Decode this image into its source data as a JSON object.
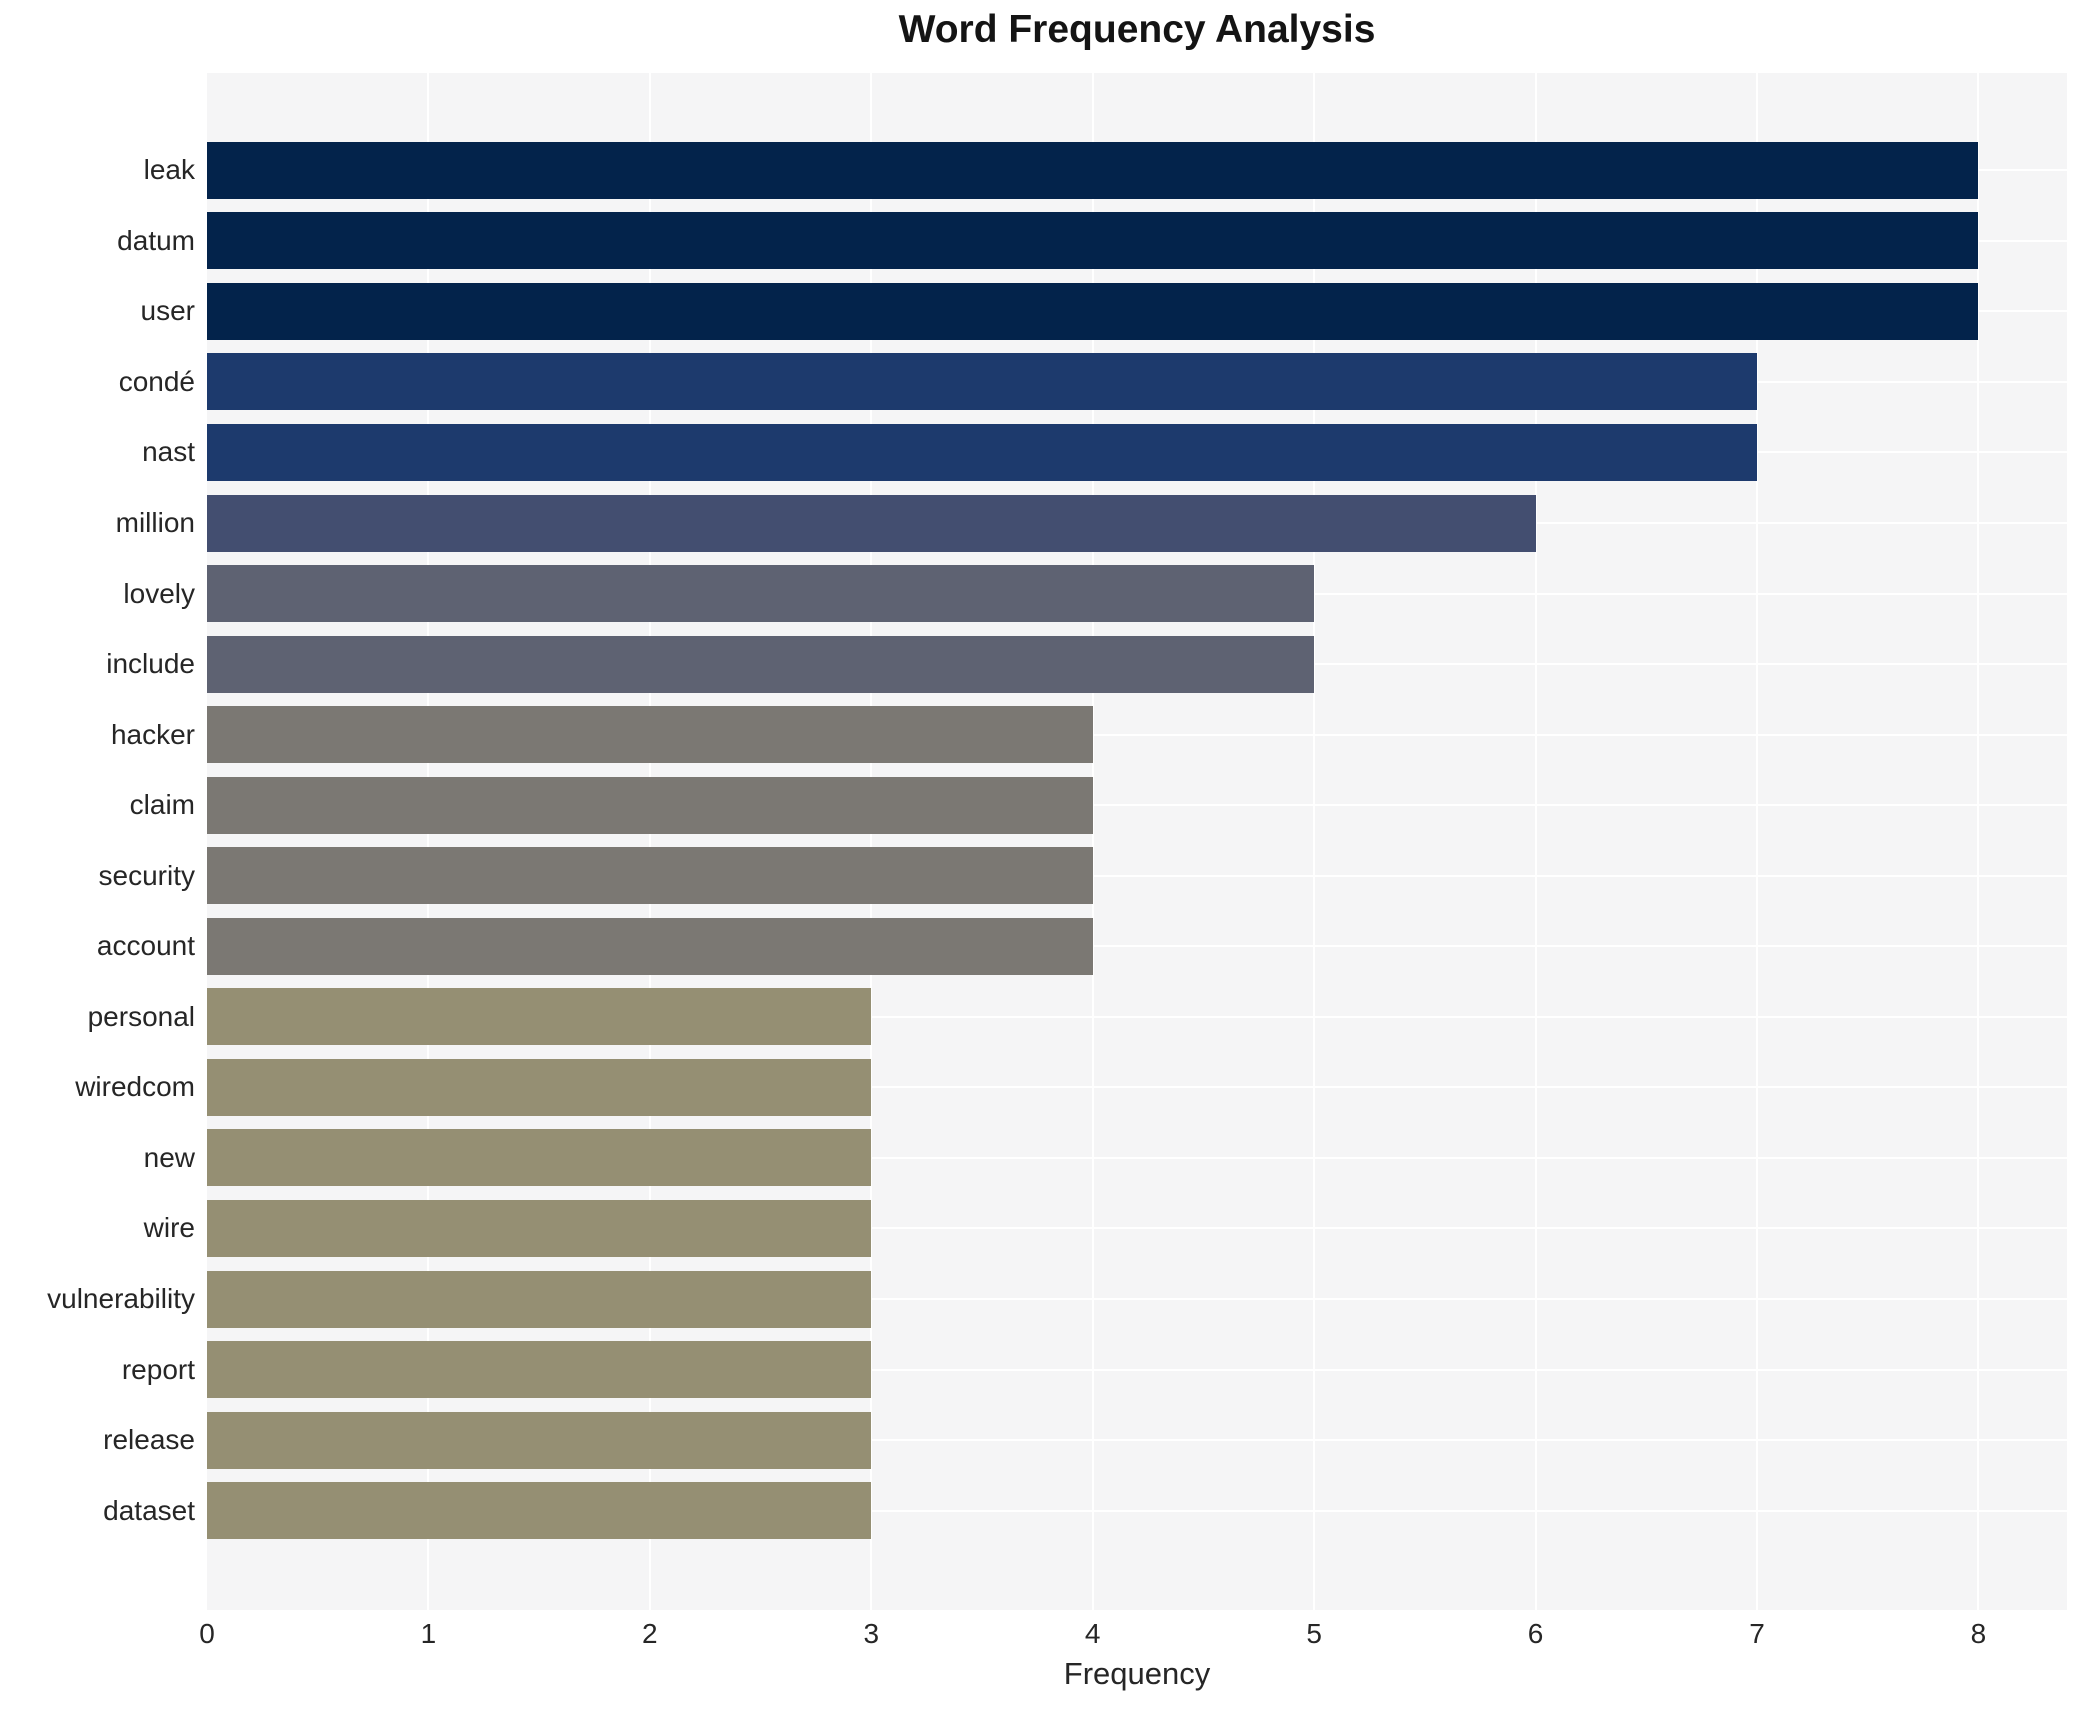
{
  "chart_data": {
    "type": "bar",
    "orientation": "horizontal",
    "title": "Word Frequency Analysis",
    "xlabel": "Frequency",
    "ylabel": "",
    "categories": [
      "leak",
      "datum",
      "user",
      "condé",
      "nast",
      "million",
      "lovely",
      "include",
      "hacker",
      "claim",
      "security",
      "account",
      "personal",
      "wiredcom",
      "new",
      "wire",
      "vulnerability",
      "report",
      "release",
      "dataset"
    ],
    "values": [
      8,
      8,
      8,
      7,
      7,
      6,
      5,
      5,
      4,
      4,
      4,
      4,
      3,
      3,
      3,
      3,
      3,
      3,
      3,
      3
    ],
    "bar_colors": [
      "#03234b",
      "#03234b",
      "#03234b",
      "#1d3a6d",
      "#1d3a6d",
      "#434e70",
      "#5e6272",
      "#5e6272",
      "#7b7873",
      "#7b7873",
      "#7b7873",
      "#7b7873",
      "#958f73",
      "#958f73",
      "#958f73",
      "#958f73",
      "#958f73",
      "#958f73",
      "#958f73",
      "#958f73"
    ],
    "xlim": [
      0,
      8.4
    ],
    "xticks": [
      0,
      1,
      2,
      3,
      4,
      5,
      6,
      7,
      8
    ],
    "grid": true,
    "legend": false,
    "plot_background": "#f5f5f6",
    "grid_color": "#ffffff",
    "figure_background": "#ffffff"
  }
}
